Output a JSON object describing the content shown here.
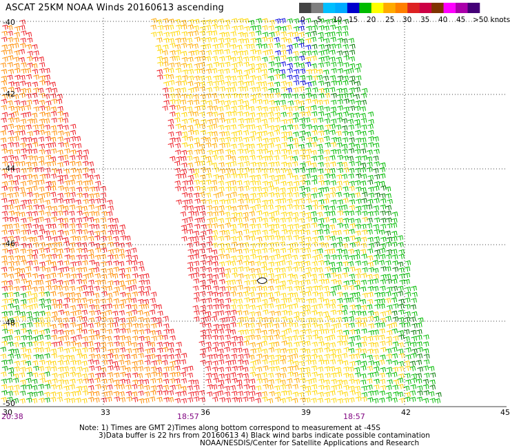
{
  "title": "ASCAT 25KM NOAA Winds 20160613 ascending",
  "legend": {
    "labels": [
      "0",
      "5",
      "10",
      "15",
      "20",
      "25",
      "30",
      "35",
      "40",
      "45",
      ">50 knots"
    ],
    "colors": [
      "#444444",
      "#7f7f7f",
      "#00bfff",
      "#00aaff",
      "#0000cc",
      "#00bb00",
      "#ffff00",
      "#ffaa00",
      "#ff7f00",
      "#dd2222",
      "#cc0044",
      "#7f3300",
      "#ff00ff",
      "#aa00aa",
      "#440077"
    ]
  },
  "axes": {
    "lon_ticks": [
      "30",
      "33",
      "36",
      "39",
      "42",
      "45"
    ],
    "lat_ticks": [
      "-40",
      "-42",
      "-44",
      "-46",
      "-48",
      "-50"
    ]
  },
  "times": [
    "20:38",
    "18:57",
    "18:57"
  ],
  "note": {
    "line1": "Note: 1) Times are GMT 2)Times along bottom correspond to measurement at -45S",
    "line2": "3)Data buffer is 22 hrs from 20160613 4) Black wind barbs indicate possible contamination",
    "line3": "NOAA/NESDIS/Center for Satellite Applications and Research"
  }
}
